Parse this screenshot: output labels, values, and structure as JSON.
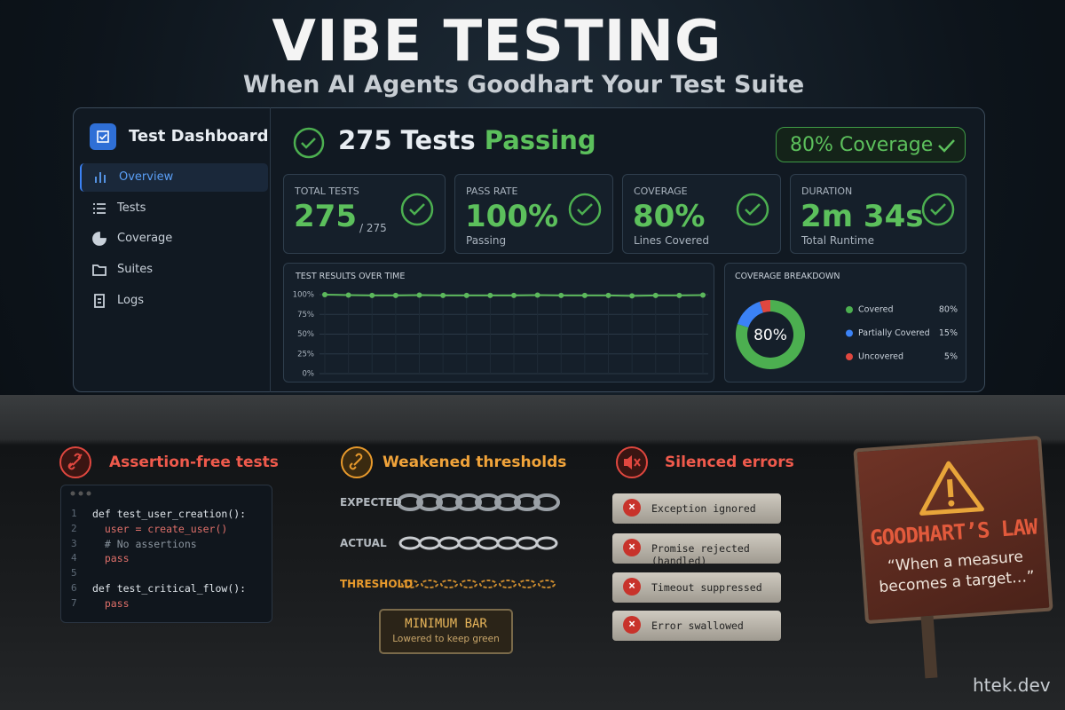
{
  "header": {
    "title": "VIBE TESTING",
    "subtitle": "When AI Agents Goodhart Your Test Suite"
  },
  "sidebar": {
    "title": "Test Dashboard",
    "items": [
      "Overview",
      "Tests",
      "Coverage",
      "Suites",
      "Logs"
    ]
  },
  "headline": {
    "count": "275 Tests",
    "state": "Passing",
    "badge": "80% Coverage"
  },
  "cards": [
    {
      "label": "TOTAL TESTS",
      "value": "275",
      "note": "/ 275"
    },
    {
      "label": "PASS RATE",
      "value": "100%",
      "note": "Passing"
    },
    {
      "label": "COVERAGE",
      "value": "80%",
      "note": "Lines Covered"
    },
    {
      "label": "DURATION",
      "value": "2m 34s",
      "note": "Total Runtime"
    }
  ],
  "results_chart": {
    "type": "line",
    "title": "TEST RESULTS OVER TIME",
    "values": [
      100,
      99.5,
      99,
      99,
      99.5,
      99,
      99,
      99,
      99,
      99.5,
      99,
      99,
      99,
      98.5,
      99,
      99,
      99.5
    ],
    "ylim": [
      0,
      100
    ],
    "yticks": [
      {
        "value": 0,
        "label": "0%"
      },
      {
        "value": 25,
        "label": "25%"
      },
      {
        "value": 50,
        "label": "50%"
      },
      {
        "value": 75,
        "label": "75%"
      },
      {
        "value": 100,
        "label": "100%"
      }
    ],
    "color": "#5cb85c",
    "grid": true
  },
  "coverage_chart": {
    "type": "pie",
    "title": "COVERAGE BREAKDOWN",
    "center_label": "80%",
    "categories": [
      "Covered",
      "Partially Covered",
      "Uncovered"
    ],
    "values": [
      80,
      15,
      5
    ],
    "value_labels": [
      "80%",
      "15%",
      "5%"
    ],
    "colors": [
      "#4caf50",
      "#3b82f6",
      "#e0473f"
    ]
  },
  "panels": {
    "assertion": {
      "title": "Assertion-free tests",
      "lines": [
        {
          "n": 1,
          "text": "def test_user_creation():"
        },
        {
          "n": 2,
          "text": "  user = create_user()"
        },
        {
          "n": 3,
          "text": "  # No assertions"
        },
        {
          "n": 4,
          "text": "  pass"
        },
        {
          "n": 5
        },
        {
          "n": 6,
          "text": "def test_critical_flow():"
        },
        {
          "n": 7,
          "text": "  pass"
        }
      ]
    },
    "thresholds": {
      "title": "Weakened thresholds",
      "rows": [
        "EXPECTED",
        "ACTUAL",
        "THRESHOLD"
      ],
      "sign": "MINIMUM BAR",
      "sign_note": "Lowered to keep green"
    },
    "silenced": {
      "title": "Silenced errors",
      "items": [
        "Exception ignored",
        "Promise rejected (handled)",
        "Timeout suppressed",
        "Error swallowed"
      ]
    }
  },
  "law_sign": {
    "title": "GOODHART’S LAW",
    "quote": "“When a measure becomes a target…”"
  },
  "footer": "htek.dev"
}
